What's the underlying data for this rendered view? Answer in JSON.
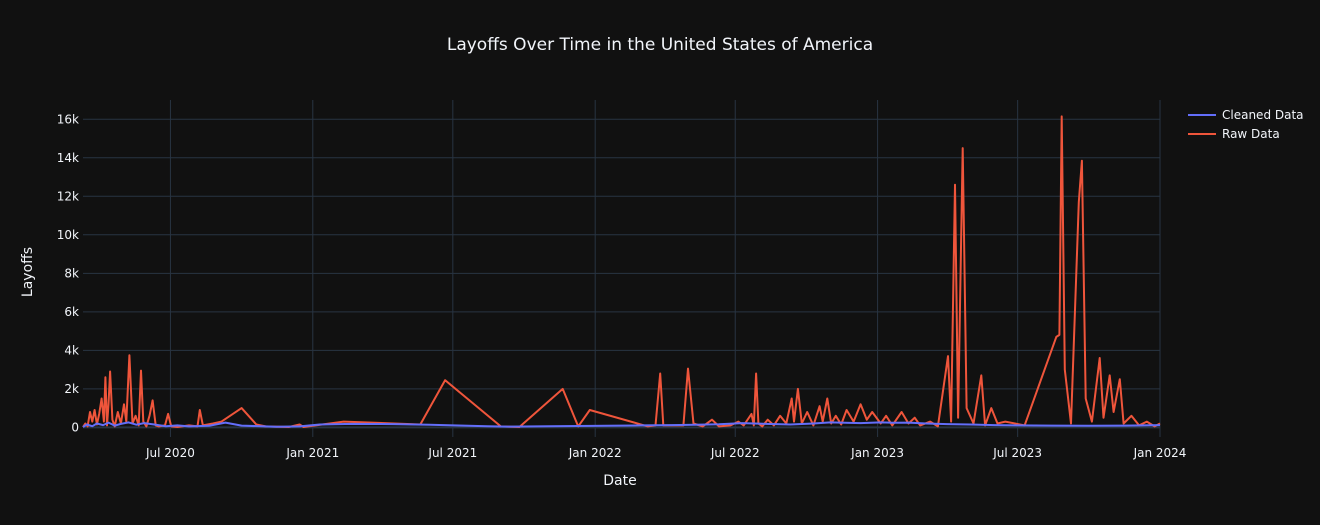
{
  "chart_data": {
    "type": "line",
    "title": "Layoffs Over Time in the United States of America",
    "xlabel": "Date",
    "ylabel": "Layoffs",
    "xlim": [
      "2020-03-10",
      "2024-01-01"
    ],
    "ylim": [
      -500,
      17000
    ],
    "x_ticks": [
      {
        "date": "2020-07-01",
        "label": "Jul 2020"
      },
      {
        "date": "2021-01-01",
        "label": "Jan 2021"
      },
      {
        "date": "2021-07-01",
        "label": "Jul 2021"
      },
      {
        "date": "2022-01-01",
        "label": "Jan 2022"
      },
      {
        "date": "2022-07-01",
        "label": "Jul 2022"
      },
      {
        "date": "2023-01-01",
        "label": "Jan 2023"
      },
      {
        "date": "2023-07-01",
        "label": "Jul 2023"
      },
      {
        "date": "2024-01-01",
        "label": "Jan 2024"
      }
    ],
    "y_ticks": [
      {
        "value": 0,
        "label": "0"
      },
      {
        "value": 2000,
        "label": "2k"
      },
      {
        "value": 4000,
        "label": "4k"
      },
      {
        "value": 6000,
        "label": "6k"
      },
      {
        "value": 8000,
        "label": "8k"
      },
      {
        "value": 10000,
        "label": "10k"
      },
      {
        "value": 12000,
        "label": "12k"
      },
      {
        "value": 14000,
        "label": "14k"
      },
      {
        "value": 16000,
        "label": "16k"
      }
    ],
    "grid": true,
    "legend_position": "top-right",
    "colors": {
      "background": "#111111",
      "grid": "#283442",
      "text": "#f2f5fa",
      "cleaned": "#636efa",
      "raw": "#ef553b"
    },
    "series": [
      {
        "name": "Cleaned Data",
        "color": "#636efa",
        "points": [
          [
            "2020-03-10",
            20
          ],
          [
            "2020-03-15",
            150
          ],
          [
            "2020-03-22",
            60
          ],
          [
            "2020-03-28",
            200
          ],
          [
            "2020-04-05",
            120
          ],
          [
            "2020-04-12",
            250
          ],
          [
            "2020-04-20",
            90
          ],
          [
            "2020-04-28",
            180
          ],
          [
            "2020-05-08",
            260
          ],
          [
            "2020-05-18",
            140
          ],
          [
            "2020-05-28",
            220
          ],
          [
            "2020-06-10",
            150
          ],
          [
            "2020-06-25",
            60
          ],
          [
            "2020-07-10",
            100
          ],
          [
            "2020-07-25",
            50
          ],
          [
            "2020-08-20",
            80
          ],
          [
            "2020-09-10",
            250
          ],
          [
            "2020-10-01",
            90
          ],
          [
            "2020-11-15",
            30
          ],
          [
            "2020-12-15",
            50
          ],
          [
            "2021-01-10",
            150
          ],
          [
            "2021-02-20",
            180
          ],
          [
            "2021-04-15",
            170
          ],
          [
            "2021-06-01",
            140
          ],
          [
            "2021-08-15",
            60
          ],
          [
            "2021-09-10",
            40
          ],
          [
            "2021-11-01",
            60
          ],
          [
            "2022-01-15",
            80
          ],
          [
            "2022-03-01",
            100
          ],
          [
            "2022-04-10",
            120
          ],
          [
            "2022-05-10",
            140
          ],
          [
            "2022-06-10",
            160
          ],
          [
            "2022-07-10",
            220
          ],
          [
            "2022-08-10",
            180
          ],
          [
            "2022-09-10",
            150
          ],
          [
            "2022-10-10",
            200
          ],
          [
            "2022-11-01",
            260
          ],
          [
            "2022-11-20",
            240
          ],
          [
            "2022-12-10",
            220
          ],
          [
            "2023-01-05",
            260
          ],
          [
            "2023-01-20",
            240
          ],
          [
            "2023-02-10",
            250
          ],
          [
            "2023-03-05",
            200
          ],
          [
            "2023-04-01",
            170
          ],
          [
            "2023-05-01",
            150
          ],
          [
            "2023-06-01",
            120
          ],
          [
            "2023-07-01",
            100
          ],
          [
            "2023-08-15",
            90
          ],
          [
            "2023-10-01",
            80
          ],
          [
            "2023-11-15",
            90
          ],
          [
            "2023-12-20",
            110
          ],
          [
            "2024-01-01",
            120
          ]
        ]
      },
      {
        "name": "Raw Data",
        "color": "#ef553b",
        "points": [
          [
            "2020-03-10",
            20
          ],
          [
            "2020-03-13",
            200
          ],
          [
            "2020-03-16",
            50
          ],
          [
            "2020-03-19",
            800
          ],
          [
            "2020-03-22",
            300
          ],
          [
            "2020-03-25",
            900
          ],
          [
            "2020-03-28",
            150
          ],
          [
            "2020-03-31",
            700
          ],
          [
            "2020-04-03",
            1500
          ],
          [
            "2020-04-06",
            300
          ],
          [
            "2020-04-08",
            2600
          ],
          [
            "2020-04-10",
            100
          ],
          [
            "2020-04-12",
            1200
          ],
          [
            "2020-04-14",
            2900
          ],
          [
            "2020-04-17",
            400
          ],
          [
            "2020-04-20",
            50
          ],
          [
            "2020-04-24",
            800
          ],
          [
            "2020-04-28",
            200
          ],
          [
            "2020-05-02",
            1200
          ],
          [
            "2020-05-05",
            300
          ],
          [
            "2020-05-09",
            3750
          ],
          [
            "2020-05-13",
            200
          ],
          [
            "2020-05-17",
            600
          ],
          [
            "2020-05-21",
            100
          ],
          [
            "2020-05-24",
            2950
          ],
          [
            "2020-05-27",
            300
          ],
          [
            "2020-05-31",
            50
          ],
          [
            "2020-06-04",
            600
          ],
          [
            "2020-06-08",
            1400
          ],
          [
            "2020-06-12",
            100
          ],
          [
            "2020-06-16",
            50
          ],
          [
            "2020-06-24",
            100
          ],
          [
            "2020-06-28",
            700
          ],
          [
            "2020-07-02",
            50
          ],
          [
            "2020-07-10",
            20
          ],
          [
            "2020-07-25",
            100
          ],
          [
            "2020-08-05",
            50
          ],
          [
            "2020-08-08",
            900
          ],
          [
            "2020-08-12",
            100
          ],
          [
            "2020-08-25",
            200
          ],
          [
            "2020-09-05",
            300
          ],
          [
            "2020-10-01",
            1000
          ],
          [
            "2020-10-20",
            150
          ],
          [
            "2020-11-01",
            50
          ],
          [
            "2020-12-01",
            20
          ],
          [
            "2020-12-15",
            150
          ],
          [
            "2020-12-20",
            20
          ],
          [
            "2021-02-10",
            300
          ],
          [
            "2021-05-20",
            150
          ],
          [
            "2021-06-21",
            2450
          ],
          [
            "2021-09-01",
            50
          ],
          [
            "2021-09-25",
            20
          ],
          [
            "2021-11-20",
            2000
          ],
          [
            "2021-12-10",
            50
          ],
          [
            "2021-12-25",
            900
          ],
          [
            "2022-03-10",
            50
          ],
          [
            "2022-03-20",
            100
          ],
          [
            "2022-03-26",
            2800
          ],
          [
            "2022-03-30",
            100
          ],
          [
            "2022-04-25",
            100
          ],
          [
            "2022-05-01",
            3050
          ],
          [
            "2022-05-08",
            200
          ],
          [
            "2022-05-20",
            50
          ],
          [
            "2022-06-01",
            400
          ],
          [
            "2022-06-10",
            50
          ],
          [
            "2022-06-25",
            100
          ],
          [
            "2022-07-05",
            300
          ],
          [
            "2022-07-12",
            100
          ],
          [
            "2022-07-22",
            700
          ],
          [
            "2022-07-25",
            100
          ],
          [
            "2022-07-28",
            2800
          ],
          [
            "2022-07-31",
            200
          ],
          [
            "2022-08-05",
            50
          ],
          [
            "2022-08-12",
            400
          ],
          [
            "2022-08-20",
            100
          ],
          [
            "2022-08-28",
            600
          ],
          [
            "2022-09-05",
            200
          ],
          [
            "2022-09-12",
            1500
          ],
          [
            "2022-09-15",
            300
          ],
          [
            "2022-09-20",
            2000
          ],
          [
            "2022-09-25",
            200
          ],
          [
            "2022-10-02",
            800
          ],
          [
            "2022-10-10",
            100
          ],
          [
            "2022-10-18",
            1100
          ],
          [
            "2022-10-22",
            300
          ],
          [
            "2022-10-28",
            1500
          ],
          [
            "2022-11-02",
            200
          ],
          [
            "2022-11-08",
            600
          ],
          [
            "2022-11-15",
            150
          ],
          [
            "2022-11-22",
            900
          ],
          [
            "2022-12-01",
            300
          ],
          [
            "2022-12-10",
            1200
          ],
          [
            "2022-12-18",
            400
          ],
          [
            "2022-12-25",
            800
          ],
          [
            "2023-01-05",
            200
          ],
          [
            "2023-01-12",
            600
          ],
          [
            "2023-01-20",
            100
          ],
          [
            "2023-02-01",
            800
          ],
          [
            "2023-02-10",
            200
          ],
          [
            "2023-02-18",
            500
          ],
          [
            "2023-02-25",
            100
          ],
          [
            "2023-03-10",
            300
          ],
          [
            "2023-03-20",
            50
          ],
          [
            "2023-04-02",
            3700
          ],
          [
            "2023-04-06",
            300
          ],
          [
            "2023-04-11",
            12600
          ],
          [
            "2023-04-15",
            500
          ],
          [
            "2023-04-21",
            14500
          ],
          [
            "2023-04-26",
            1000
          ],
          [
            "2023-05-05",
            200
          ],
          [
            "2023-05-15",
            2700
          ],
          [
            "2023-05-20",
            100
          ],
          [
            "2023-05-28",
            1000
          ],
          [
            "2023-06-05",
            200
          ],
          [
            "2023-06-15",
            300
          ],
          [
            "2023-07-10",
            100
          ],
          [
            "2023-08-20",
            4700
          ],
          [
            "2023-08-24",
            4800
          ],
          [
            "2023-08-27",
            16150
          ],
          [
            "2023-08-31",
            3000
          ],
          [
            "2023-09-08",
            200
          ],
          [
            "2023-09-18",
            11700
          ],
          [
            "2023-09-22",
            13850
          ],
          [
            "2023-09-27",
            1500
          ],
          [
            "2023-10-05",
            300
          ],
          [
            "2023-10-15",
            3600
          ],
          [
            "2023-10-20",
            500
          ],
          [
            "2023-10-28",
            2700
          ],
          [
            "2023-11-02",
            800
          ],
          [
            "2023-11-10",
            2500
          ],
          [
            "2023-11-15",
            200
          ],
          [
            "2023-11-25",
            600
          ],
          [
            "2023-12-05",
            100
          ],
          [
            "2023-12-15",
            300
          ],
          [
            "2023-12-25",
            50
          ],
          [
            "2024-01-01",
            200
          ]
        ]
      }
    ]
  }
}
